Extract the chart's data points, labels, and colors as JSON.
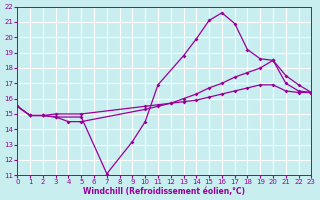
{
  "bg_color": "#c8eef0",
  "grid_color": "#ffffff",
  "line_color": "#990099",
  "xlabel": "Windchill (Refroidissement éolien,°C)",
  "xlim": [
    0,
    23
  ],
  "ylim": [
    11,
    22
  ],
  "xticks": [
    0,
    1,
    2,
    3,
    4,
    5,
    6,
    7,
    8,
    9,
    10,
    11,
    12,
    13,
    14,
    15,
    16,
    17,
    18,
    19,
    20,
    21,
    22,
    23
  ],
  "yticks": [
    11,
    12,
    13,
    14,
    15,
    16,
    17,
    18,
    19,
    20,
    21,
    22
  ],
  "line1_x": [
    0,
    1,
    2,
    3,
    5,
    7,
    9,
    10,
    11,
    13,
    14,
    15,
    16,
    17,
    18,
    19,
    20,
    21,
    22,
    23
  ],
  "line1_y": [
    15.5,
    14.9,
    14.9,
    14.8,
    14.8,
    11.1,
    13.2,
    14.5,
    16.9,
    18.8,
    19.9,
    21.1,
    21.6,
    20.9,
    19.2,
    18.6,
    18.5,
    17.0,
    16.5,
    16.4
  ],
  "line2_x": [
    0,
    1,
    2,
    3,
    4,
    5,
    10,
    11,
    12,
    13,
    14,
    15,
    16,
    17,
    18,
    19,
    20,
    21,
    22,
    23
  ],
  "line2_y": [
    15.5,
    14.9,
    14.9,
    14.8,
    14.5,
    14.5,
    15.3,
    15.5,
    15.7,
    16.0,
    16.3,
    16.7,
    17.0,
    17.4,
    17.7,
    18.0,
    18.5,
    17.5,
    16.9,
    16.4
  ],
  "line3_x": [
    0,
    1,
    2,
    3,
    5,
    10,
    11,
    12,
    13,
    14,
    15,
    16,
    17,
    18,
    19,
    20,
    21,
    22,
    23
  ],
  "line3_y": [
    15.5,
    14.9,
    14.9,
    15.0,
    15.0,
    15.5,
    15.6,
    15.7,
    15.8,
    15.9,
    16.1,
    16.3,
    16.5,
    16.7,
    16.9,
    16.9,
    16.5,
    16.4,
    16.4
  ]
}
